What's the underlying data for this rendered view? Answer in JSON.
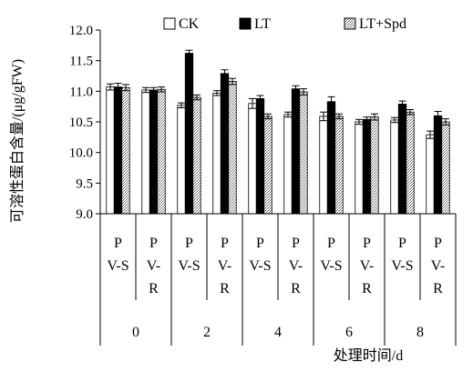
{
  "chart_data": {
    "type": "bar",
    "title": "",
    "ylabel": "可溶性蛋白含量/(μg/gFW)",
    "xlabel": "处理时间/d",
    "ylim": [
      9.0,
      12.0
    ],
    "yticks": [
      "9.0",
      "9.5",
      "10.0",
      "10.5",
      "11.0",
      "11.5",
      "12.0"
    ],
    "legend_position": "top",
    "groups": [
      "0",
      "2",
      "4",
      "6",
      "8"
    ],
    "categories": [
      {
        "group": "0",
        "label": [
          "P",
          "V-S"
        ]
      },
      {
        "group": "0",
        "label": [
          "P",
          "V-",
          "R"
        ]
      },
      {
        "group": "2",
        "label": [
          "P",
          "V-S"
        ]
      },
      {
        "group": "2",
        "label": [
          "P",
          "V-",
          "R"
        ]
      },
      {
        "group": "4",
        "label": [
          "P",
          "V-S"
        ]
      },
      {
        "group": "4",
        "label": [
          "P",
          "V-",
          "R"
        ]
      },
      {
        "group": "6",
        "label": [
          "P",
          "V-S"
        ]
      },
      {
        "group": "6",
        "label": [
          "P",
          "V-",
          "R"
        ]
      },
      {
        "group": "8",
        "label": [
          "P",
          "V-S"
        ]
      },
      {
        "group": "8",
        "label": [
          "P",
          "V-",
          "R"
        ]
      }
    ],
    "series": [
      {
        "name": "CK",
        "pattern": "white",
        "values": [
          11.07,
          11.02,
          10.77,
          10.97,
          10.8,
          10.62,
          10.59,
          10.5,
          10.53,
          10.29
        ],
        "errors": [
          0.05,
          0.04,
          0.04,
          0.04,
          0.08,
          0.04,
          0.07,
          0.04,
          0.04,
          0.06
        ]
      },
      {
        "name": "LT",
        "pattern": "black",
        "values": [
          11.07,
          11.02,
          11.62,
          11.29,
          10.88,
          11.04,
          10.83,
          10.54,
          10.79,
          10.6
        ],
        "errors": [
          0.06,
          0.04,
          0.05,
          0.06,
          0.05,
          0.05,
          0.08,
          0.04,
          0.05,
          0.07
        ]
      },
      {
        "name": "LT+Spd",
        "pattern": "hatch",
        "values": [
          11.06,
          11.03,
          10.9,
          11.16,
          10.59,
          10.99,
          10.59,
          10.58,
          10.66,
          10.5
        ],
        "errors": [
          0.05,
          0.04,
          0.04,
          0.05,
          0.04,
          0.05,
          0.04,
          0.05,
          0.04,
          0.05
        ]
      }
    ]
  }
}
